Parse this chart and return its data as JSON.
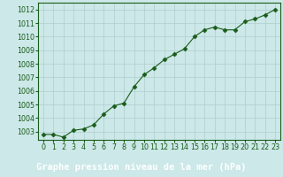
{
  "x": [
    0,
    1,
    2,
    3,
    4,
    5,
    6,
    7,
    8,
    9,
    10,
    11,
    12,
    13,
    14,
    15,
    16,
    17,
    18,
    19,
    20,
    21,
    22,
    23
  ],
  "y": [
    1002.8,
    1002.8,
    1002.6,
    1003.1,
    1003.2,
    1003.5,
    1004.3,
    1004.9,
    1005.1,
    1006.3,
    1007.2,
    1007.7,
    1008.3,
    1008.7,
    1009.1,
    1010.0,
    1010.5,
    1010.7,
    1010.5,
    1010.5,
    1011.1,
    1011.3,
    1011.6,
    1012.0
  ],
  "ylim_min": 1002.4,
  "ylim_max": 1012.5,
  "yticks": [
    1003,
    1004,
    1005,
    1006,
    1007,
    1008,
    1009,
    1010,
    1011,
    1012
  ],
  "xticks": [
    0,
    1,
    2,
    3,
    4,
    5,
    6,
    7,
    8,
    9,
    10,
    11,
    12,
    13,
    14,
    15,
    16,
    17,
    18,
    19,
    20,
    21,
    22,
    23
  ],
  "xlabel": "Graphe pression niveau de la mer (hPa)",
  "line_color": "#1a5c1a",
  "marker": "D",
  "marker_size": 2.5,
  "background_color": "#cce8e8",
  "grid_color": "#b0cece",
  "tick_label_fontsize": 5.8,
  "xlabel_fontsize": 7.5,
  "bottom_bg_color": "#4a7c4a",
  "label_color": "#ffffff",
  "tick_color": "#1a5c1a"
}
